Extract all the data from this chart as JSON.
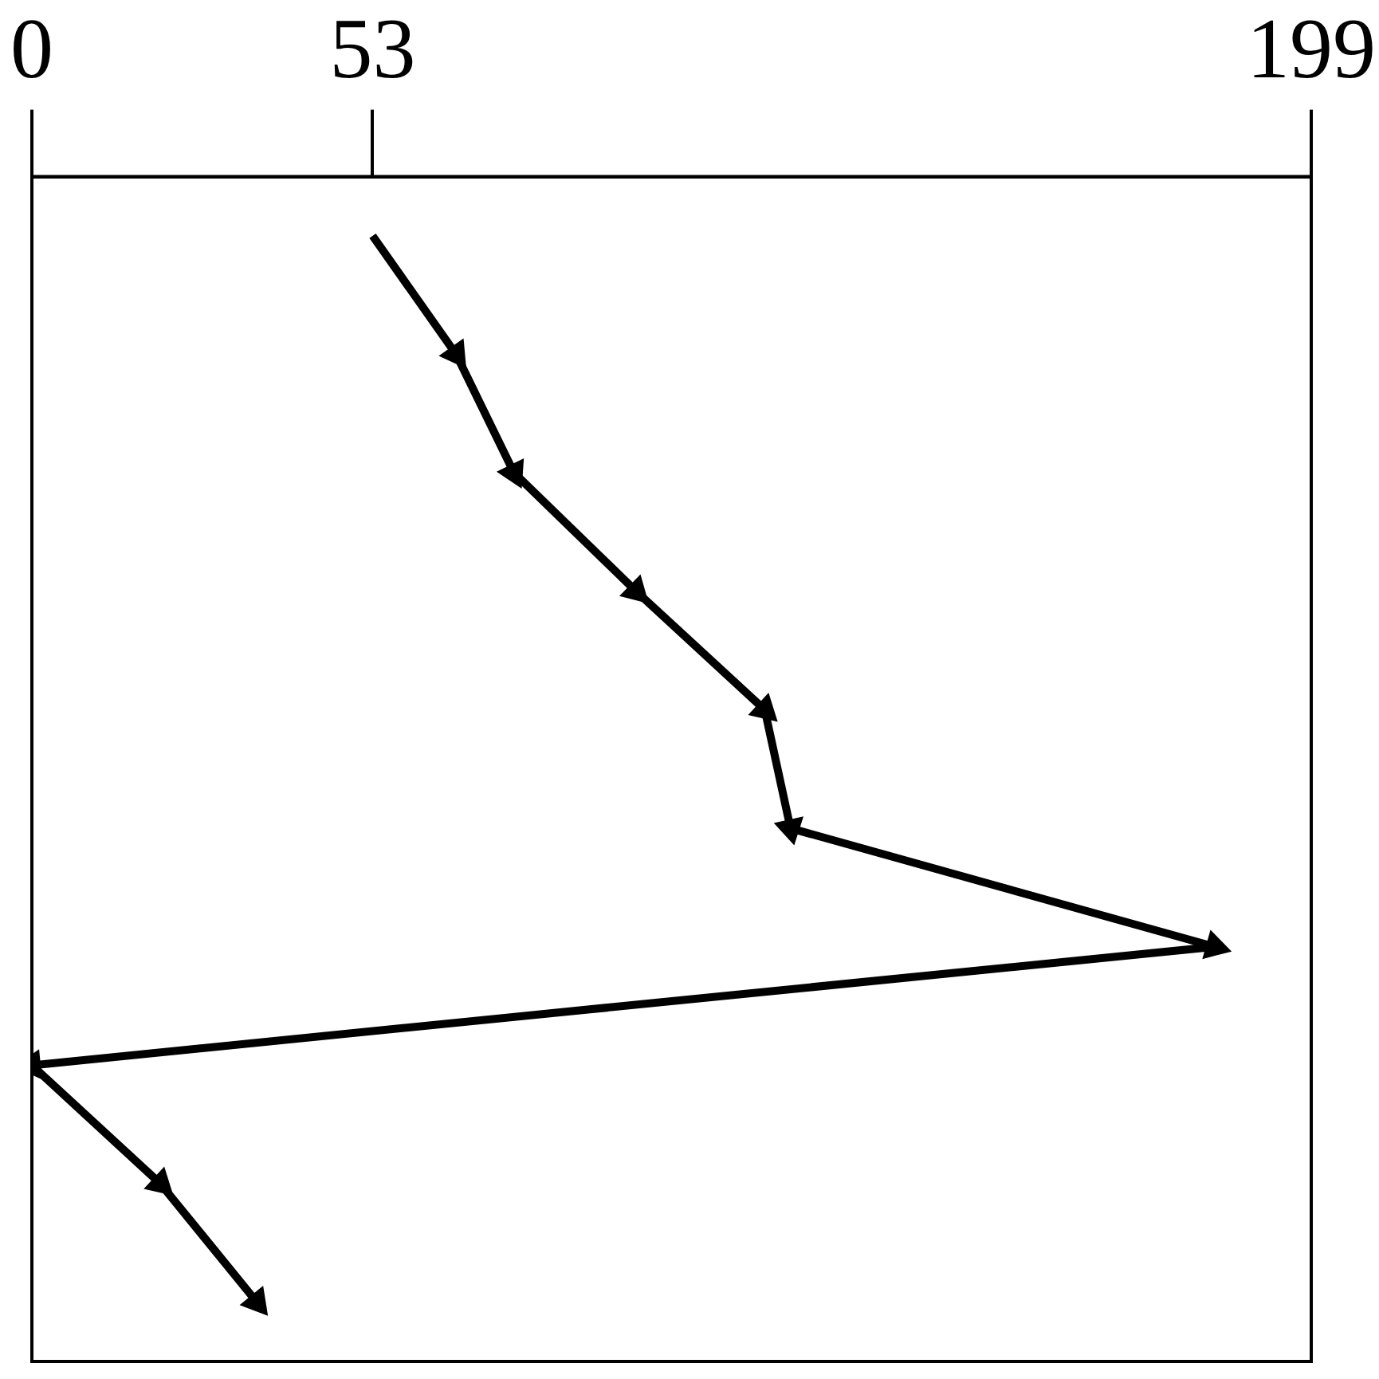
{
  "chart_data": {
    "type": "line",
    "orientation": "horizontal",
    "categories": [
      null,
      null,
      null,
      null,
      null,
      null,
      null,
      null,
      null,
      null
    ],
    "series": [
      {
        "color": "#000000",
        "values": [
          53,
          66,
          75,
          94,
          114,
          118,
          184,
          0,
          20,
          35
        ]
      }
    ],
    "xlim": [
      0,
      199
    ],
    "xticks": [
      0,
      53,
      199
    ],
    "tick_labels": "x",
    "marker": "triangle",
    "line_style": "solid",
    "grid": false,
    "legend": false
  }
}
